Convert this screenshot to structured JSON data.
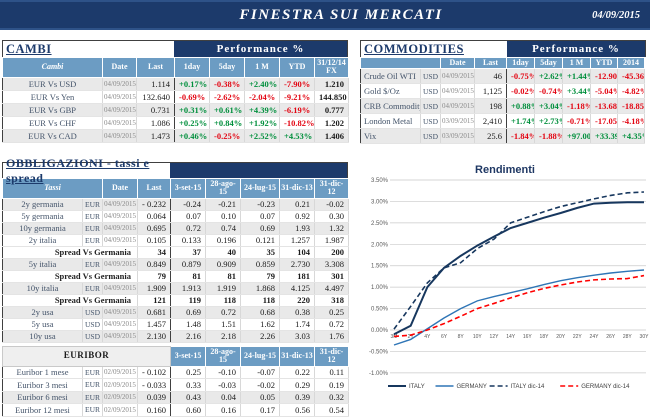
{
  "header": {
    "title": "FINESTRA SUI MERCATI",
    "date": "04/09/2015"
  },
  "colors": {
    "navy": "#1C3A6B",
    "header_blue": "#6C9CC3",
    "positive": "#008F3C",
    "negative": "#E30613",
    "row_alt": "#E9E9E9"
  },
  "cambi": {
    "title": "CAMBI",
    "performance_label": "Performance  %",
    "headers": [
      "Cambi",
      "Date",
      "Last",
      "1day",
      "5day",
      "1 M",
      "YTD",
      "31/12/14 FX"
    ],
    "rows": [
      {
        "label": "EUR Vs USD",
        "date": "04/09/2015",
        "last": "1.114",
        "values": [
          "+0.17%",
          "-0.38%",
          "+2.40%",
          "-7.90%",
          "1.210"
        ],
        "shade": true
      },
      {
        "label": "EUR Vs Yen",
        "date": "04/09/2015",
        "last": "132.640",
        "values": [
          "-0.69%",
          "-2.62%",
          "-2.04%",
          "-9.21%",
          "144.850"
        ],
        "shade": false
      },
      {
        "label": "EUR Vs GBP",
        "date": "04/09/2015",
        "last": "0.731",
        "values": [
          "+0.31%",
          "+0.61%",
          "+4.39%",
          "-6.19%",
          "0.777"
        ],
        "shade": true
      },
      {
        "label": "EUR Vs CHF",
        "date": "04/09/2015",
        "last": "1.086",
        "values": [
          "+0.25%",
          "+0.84%",
          "+1.92%",
          "-10.82%",
          "1.202"
        ],
        "shade": false
      },
      {
        "label": "EUR Vs CAD",
        "date": "04/09/2015",
        "last": "1.473",
        "values": [
          "+0.46%",
          "-0.25%",
          "+2.52%",
          "+4.53%",
          "1.406"
        ],
        "shade": true
      }
    ]
  },
  "commodities": {
    "title": "COMMODITIES",
    "performance_label": "Performance  %",
    "headers": [
      "",
      "Date",
      "Last",
      "1day",
      "5day",
      "1 M",
      "YTD",
      "2014"
    ],
    "rows": [
      {
        "label": "Crude Oil WTI",
        "ccy": "USD",
        "date": "04/09/2015",
        "last": "46",
        "values": [
          "-0.75%",
          "+2.62%",
          "+1.44%",
          "-12.90%",
          "-45.36%"
        ],
        "shade": true
      },
      {
        "label": "Gold $/Oz",
        "ccy": "USD",
        "date": "04/09/2015",
        "last": "1,125",
        "values": [
          "-0.02%",
          "-0.74%",
          "+3.44%",
          "-5.04%",
          "-4.82%"
        ],
        "shade": false
      },
      {
        "label": "CRB Commodity",
        "ccy": "USD",
        "date": "04/09/2015",
        "last": "198",
        "values": [
          "+0.88%",
          "+3.04%",
          "-1.18%",
          "-13.68%",
          "-18.85%"
        ],
        "shade": true
      },
      {
        "label": "London Metal",
        "ccy": "USD",
        "date": "03/09/2015",
        "last": "2,410",
        "values": [
          "+1.74%",
          "+2.73%",
          "-0.71%",
          "-17.05%",
          "-4.18%"
        ],
        "shade": false
      },
      {
        "label": "Vix",
        "ccy": "USD",
        "date": "03/09/2015",
        "last": "25.6",
        "values": [
          "-1.84%",
          "-1.88%",
          "+97.00%",
          "+33.39%",
          "+4.35%"
        ],
        "shade": true
      }
    ]
  },
  "obbligazioni": {
    "title": "OBBLIGAZIONI - tassi e spread",
    "headers": [
      "Tassi",
      "Date",
      "Last",
      "3-set-15",
      "28-ago-15",
      "24-lug-15",
      "31-dic-13",
      "31-dic-12"
    ],
    "rows": [
      {
        "type": "data",
        "label": "2y germania",
        "ccy": "EUR",
        "date": "04/09/2015",
        "last": "- 0.232",
        "values": [
          "-0.24",
          "-0.21",
          "-0.23",
          "0.21",
          "-0.02"
        ],
        "shade": true
      },
      {
        "type": "data",
        "label": "5y germania",
        "ccy": "EUR",
        "date": "04/09/2015",
        "last": "0.064",
        "values": [
          "0.07",
          "0.10",
          "0.07",
          "0.92",
          "0.30"
        ],
        "shade": false
      },
      {
        "type": "data",
        "label": "10y germania",
        "ccy": "EUR",
        "date": "04/09/2015",
        "last": "0.695",
        "values": [
          "0.72",
          "0.74",
          "0.69",
          "1.93",
          "1.32"
        ],
        "shade": true
      },
      {
        "type": "data",
        "label": "2y italia",
        "ccy": "EUR",
        "date": "04/09/2015",
        "last": "0.105",
        "values": [
          "0.133",
          "0.196",
          "0.121",
          "1.257",
          "1.987"
        ],
        "shade": false
      },
      {
        "type": "spread",
        "label": "Spread Vs Germania",
        "last": "34",
        "values": [
          "37",
          "40",
          "35",
          "104",
          "200"
        ],
        "shade": false
      },
      {
        "type": "data",
        "label": "5y italia",
        "ccy": "EUR",
        "date": "04/09/2015",
        "last": "0.849",
        "values": [
          "0.879",
          "0.909",
          "0.859",
          "2.730",
          "3.308"
        ],
        "shade": true
      },
      {
        "type": "spread",
        "label": "Spread Vs Germania",
        "last": "79",
        "values": [
          "81",
          "81",
          "79",
          "181",
          "301"
        ],
        "shade": false
      },
      {
        "type": "data",
        "label": "10y italia",
        "ccy": "EUR",
        "date": "04/09/2015",
        "last": "1.909",
        "values": [
          "1.913",
          "1.919",
          "1.868",
          "4.125",
          "4.497"
        ],
        "shade": true
      },
      {
        "type": "spread",
        "label": "Spread Vs Germania",
        "last": "121",
        "values": [
          "119",
          "118",
          "118",
          "220",
          "318"
        ],
        "shade": false
      },
      {
        "type": "data",
        "label": "2y usa",
        "ccy": "USD",
        "date": "04/09/2015",
        "last": "0.681",
        "values": [
          "0.69",
          "0.72",
          "0.68",
          "0.38",
          "0.25"
        ],
        "shade": true
      },
      {
        "type": "data",
        "label": "5y usa",
        "ccy": "USD",
        "date": "04/09/2015",
        "last": "1.457",
        "values": [
          "1.48",
          "1.51",
          "1.62",
          "1.74",
          "0.72"
        ],
        "shade": false
      },
      {
        "type": "data",
        "label": "10y usa",
        "ccy": "USD",
        "date": "04/09/2015",
        "last": "2.130",
        "values": [
          "2.16",
          "2.18",
          "2.26",
          "3.03",
          "1.76"
        ],
        "shade": true
      }
    ]
  },
  "euribor": {
    "title": "EURIBOR",
    "headers": [
      "3-set-15",
      "28-ago-15",
      "24-lug-15",
      "31-dic-13",
      "31-dic-12"
    ],
    "rows": [
      {
        "label": "Euribor 1 mese",
        "ccy": "EUR",
        "date": "02/09/2015",
        "last": "- 0.102",
        "values": [
          "0.25",
          "-0.10",
          "-0.07",
          "0.22",
          "0.11"
        ],
        "shade": false
      },
      {
        "label": "Euribor 3 mesi",
        "ccy": "EUR",
        "date": "02/09/2015",
        "last": "- 0.033",
        "values": [
          "0.33",
          "-0.03",
          "-0.02",
          "0.29",
          "0.19"
        ],
        "shade": false
      },
      {
        "label": "Euribor 6 mesi",
        "ccy": "EUR",
        "date": "02/09/2015",
        "last": "0.039",
        "values": [
          "0.43",
          "0.04",
          "0.05",
          "0.39",
          "0.32"
        ],
        "shade": true
      },
      {
        "label": "Euribor 12 mesi",
        "ccy": "EUR",
        "date": "02/09/2015",
        "last": "0.160",
        "values": [
          "0.60",
          "0.16",
          "0.17",
          "0.56",
          "0.54"
        ],
        "shade": false
      }
    ]
  },
  "chart_data": {
    "type": "line",
    "title": "Rendimenti",
    "xlabel": "",
    "ylabel": "",
    "x_labels": [
      "3M",
      "2Y",
      "4Y",
      "6Y",
      "8Y",
      "10Y",
      "12Y",
      "14Y",
      "16Y",
      "18Y",
      "20Y",
      "22Y",
      "24Y",
      "26Y",
      "28Y",
      "30Y"
    ],
    "y_ticks": [
      "3.50%",
      "3.00%",
      "2.50%",
      "2.00%",
      "1.50%",
      "1.00%",
      "0.50%",
      "0.00%",
      "-0.50%",
      "-1.00%"
    ],
    "ylim": [
      -1.0,
      3.5
    ],
    "grid": true,
    "legend_position": "bottom",
    "series": [
      {
        "name": "ITALY",
        "color": "#17375E",
        "style": "solid",
        "width": 2,
        "values": [
          -0.1,
          0.1,
          1.0,
          1.45,
          1.73,
          1.97,
          2.18,
          2.38,
          2.5,
          2.62,
          2.73,
          2.85,
          2.95,
          2.97,
          2.98,
          2.98
        ]
      },
      {
        "name": "GERMANY",
        "color": "#2E75B6",
        "style": "solid",
        "width": 1.4,
        "values": [
          -0.35,
          -0.22,
          0.03,
          0.28,
          0.5,
          0.68,
          0.78,
          0.87,
          0.96,
          1.06,
          1.15,
          1.22,
          1.28,
          1.33,
          1.37,
          1.4
        ]
      },
      {
        "name": "ITALY dic-14",
        "color": "#17375E",
        "style": "dashed",
        "width": 1.6,
        "values": [
          0.02,
          0.55,
          1.1,
          1.45,
          1.57,
          1.9,
          2.12,
          2.5,
          2.63,
          2.76,
          2.88,
          2.97,
          3.06,
          3.14,
          3.2,
          3.22
        ]
      },
      {
        "name": "GERMANY dic-14",
        "color": "#FF0000",
        "style": "dashed",
        "width": 1.6,
        "values": [
          -0.15,
          -0.12,
          0.0,
          0.15,
          0.32,
          0.5,
          0.62,
          0.75,
          0.87,
          0.97,
          1.05,
          1.12,
          1.17,
          1.19,
          1.2,
          1.27
        ]
      }
    ]
  }
}
